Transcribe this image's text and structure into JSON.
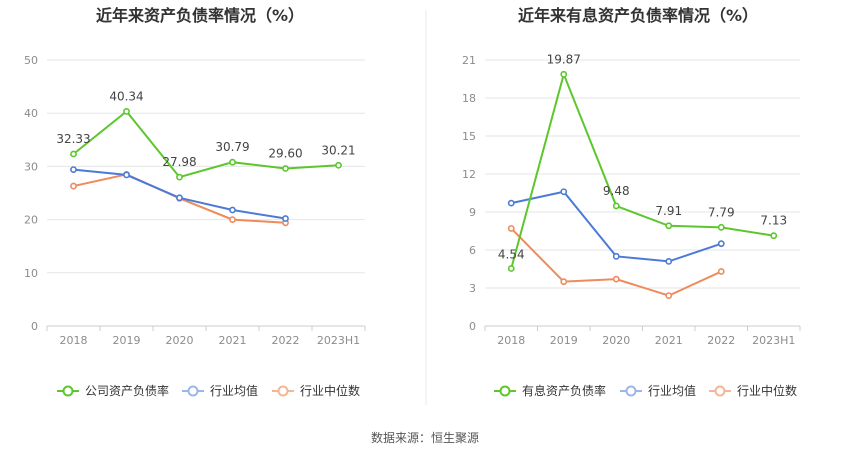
{
  "source_label": "数据来源：恒生聚源",
  "chart_data": [
    {
      "type": "line",
      "title": "近年来资产负债率情况（%）",
      "categories": [
        "2018",
        "2019",
        "2020",
        "2021",
        "2022",
        "2023H1"
      ],
      "y_ticks": [
        "0",
        "10",
        "20",
        "30",
        "40",
        "50"
      ],
      "ylim": [
        0,
        50
      ],
      "grid": true,
      "legend_position": "bottom",
      "series": [
        {
          "name": "公司资产负债率",
          "color": "#5cc72d",
          "values": [
            32.33,
            40.34,
            27.98,
            30.79,
            29.6,
            30.21
          ],
          "labels": [
            "32.33",
            "40.34",
            "27.98",
            "30.79",
            "29.60",
            "30.21"
          ]
        },
        {
          "name": "行业均值",
          "color": "#4b7bd6",
          "values": [
            29.4,
            28.4,
            24.1,
            21.8,
            20.2,
            null
          ]
        },
        {
          "name": "行业中位数",
          "color": "#ef8a5a",
          "values": [
            26.3,
            28.5,
            24.0,
            20.0,
            19.4,
            null
          ]
        }
      ]
    },
    {
      "type": "line",
      "title": "近年来有息资产负债率情况（%）",
      "categories": [
        "2018",
        "2019",
        "2020",
        "2021",
        "2022",
        "2023H1"
      ],
      "y_ticks": [
        "0",
        "3",
        "6",
        "9",
        "12",
        "15",
        "18",
        "21"
      ],
      "ylim": [
        0,
        21
      ],
      "grid": true,
      "legend_position": "bottom",
      "series": [
        {
          "name": "有息资产负债率",
          "color": "#5cc72d",
          "values": [
            4.54,
            19.87,
            9.48,
            7.91,
            7.79,
            7.13
          ],
          "labels": [
            "4.54",
            "19.87",
            "9.48",
            "7.91",
            "7.79",
            "7.13"
          ]
        },
        {
          "name": "行业均值",
          "color": "#4b7bd6",
          "values": [
            9.7,
            10.6,
            5.5,
            5.1,
            6.5,
            null
          ]
        },
        {
          "name": "行业中位数",
          "color": "#ef8a5a",
          "values": [
            7.7,
            3.5,
            3.7,
            2.4,
            4.3,
            null
          ]
        }
      ]
    }
  ]
}
